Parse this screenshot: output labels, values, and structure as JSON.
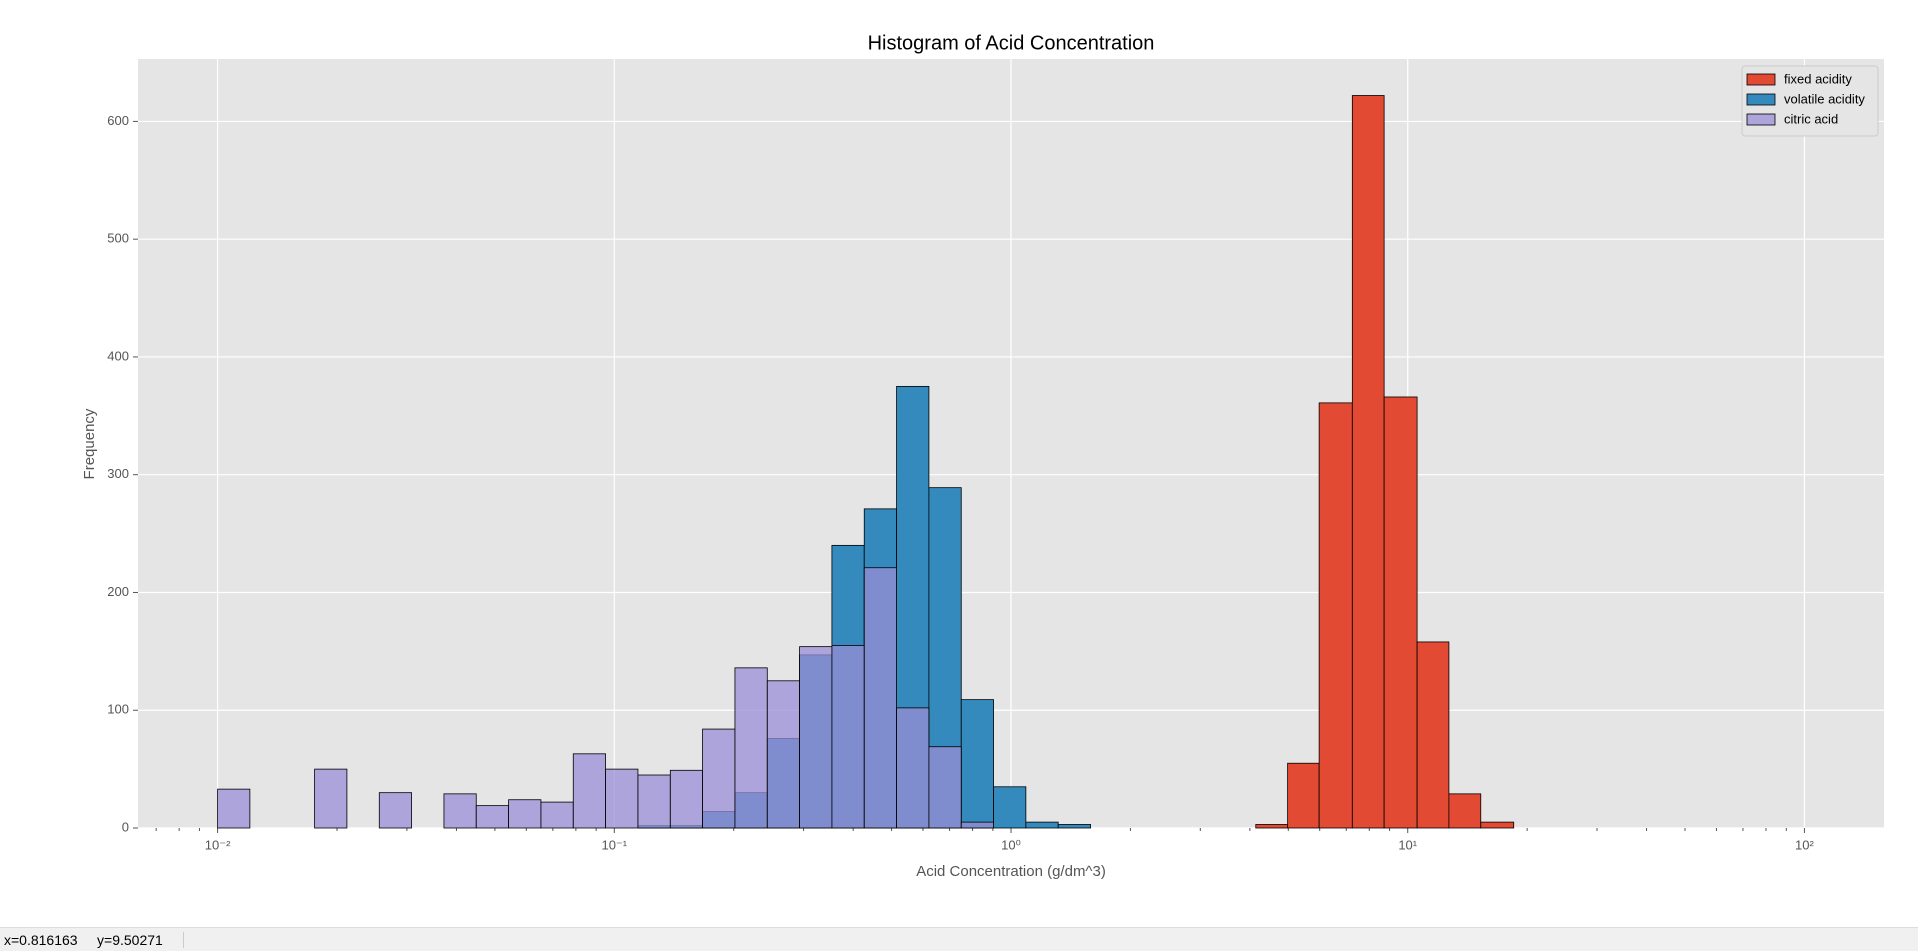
{
  "chart_data": {
    "type": "histogram",
    "title": "Histogram of Acid Concentration",
    "x_label": "Acid Concentration (g/dm^3)",
    "y_label": "Frequency",
    "xscale": "log",
    "grid": true,
    "legend": "upper right",
    "xlim": [
      0.0063,
      158.7
    ],
    "ylim": [
      0,
      653
    ],
    "xticks": [
      {
        "value": 0.01,
        "label": "10⁻²"
      },
      {
        "value": 0.1,
        "label": "10⁻¹"
      },
      {
        "value": 1,
        "label": "10⁰"
      },
      {
        "value": 10,
        "label": "10¹"
      },
      {
        "value": 100,
        "label": "10²"
      }
    ],
    "xminorticks": [
      0.007,
      0.008,
      0.009,
      0.02,
      0.03,
      0.04,
      0.05,
      0.06,
      0.07,
      0.08,
      0.09,
      0.2,
      0.3,
      0.4,
      0.5,
      0.6,
      0.7,
      0.8,
      0.9,
      2,
      3,
      4,
      5,
      6,
      7,
      8,
      9,
      20,
      30,
      40,
      50,
      60,
      70,
      80,
      90
    ],
    "yticks": [
      0,
      100,
      200,
      300,
      400,
      500,
      600
    ],
    "series": [
      {
        "name": "fixed acidity",
        "color": "#E24A33",
        "alpha": 1,
        "bins": [
          4.14,
          4.98,
          5.98,
          7.25,
          8.72,
          10.56,
          12.7,
          15.28,
          18.5
        ],
        "values": [
          3,
          55,
          361,
          622,
          366,
          158,
          29,
          5
        ]
      },
      {
        "name": "volatile acidity",
        "color": "#348ABD",
        "alpha": 1,
        "bins": [
          0.1147,
          0.1384,
          0.1669,
          0.2014,
          0.243,
          0.2931,
          0.3536,
          0.4266,
          0.5147,
          0.6209,
          0.7491,
          0.9036,
          1.09,
          1.315,
          1.587
        ],
        "values": [
          2,
          2,
          14,
          30,
          76,
          147,
          240,
          271,
          375,
          289,
          109,
          35,
          5,
          3
        ]
      },
      {
        "name": "citric acid",
        "color": "#988ED5",
        "alpha": 0.75,
        "bins": [
          0.01,
          0.01206,
          0.01455,
          0.01756,
          0.02118,
          0.02556,
          0.03083,
          0.0372,
          0.04487,
          0.05414,
          0.06531,
          0.0788,
          0.09506,
          0.1147,
          0.1384,
          0.1669,
          0.2014,
          0.243,
          0.2931,
          0.3536,
          0.4266,
          0.5147,
          0.6209,
          0.7491,
          0.9036
        ],
        "values": [
          33,
          0,
          0,
          50,
          0,
          30,
          0,
          29,
          19,
          24,
          22,
          63,
          50,
          45,
          49,
          84,
          136,
          125,
          154,
          155,
          221,
          102,
          69,
          5
        ]
      }
    ]
  },
  "status": "x=0.816163     y=9.50271"
}
